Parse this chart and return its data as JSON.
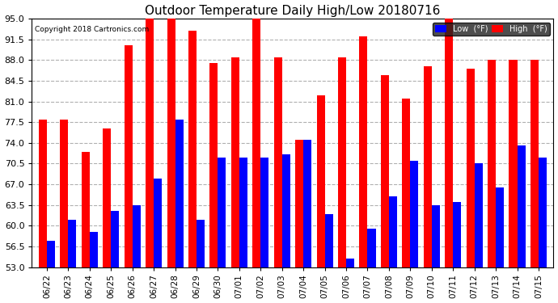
{
  "title": "Outdoor Temperature Daily High/Low 20180716",
  "copyright": "Copyright 2018 Cartronics.com",
  "dates": [
    "06/22",
    "06/23",
    "06/24",
    "06/25",
    "06/26",
    "06/27",
    "06/28",
    "06/29",
    "06/30",
    "07/01",
    "07/02",
    "07/03",
    "07/04",
    "07/05",
    "07/06",
    "07/07",
    "07/08",
    "07/09",
    "07/10",
    "07/11",
    "07/12",
    "07/13",
    "07/14",
    "07/15"
  ],
  "highs": [
    78.0,
    78.0,
    72.5,
    76.5,
    90.5,
    96.0,
    96.0,
    93.0,
    87.5,
    88.5,
    95.5,
    88.5,
    74.5,
    82.0,
    88.5,
    92.0,
    85.5,
    81.5,
    87.0,
    95.0,
    86.5,
    88.0,
    88.0,
    88.0
  ],
  "lows": [
    57.5,
    61.0,
    59.0,
    62.5,
    63.5,
    68.0,
    78.0,
    61.0,
    71.5,
    71.5,
    71.5,
    72.0,
    74.5,
    62.0,
    54.5,
    59.5,
    65.0,
    71.0,
    63.5,
    64.0,
    70.5,
    66.5,
    73.5,
    71.5
  ],
  "ylim": [
    53.0,
    95.0
  ],
  "yticks": [
    53.0,
    56.5,
    60.0,
    63.5,
    67.0,
    70.5,
    74.0,
    77.5,
    81.0,
    84.5,
    88.0,
    91.5,
    95.0
  ],
  "high_color": "#ff0000",
  "low_color": "#0000ff",
  "bg_color": "#ffffff",
  "grid_color": "#b0b0b0",
  "title_color": "#000000",
  "copyright_color": "#000000",
  "legend_low_bg": "#0000ff",
  "legend_high_bg": "#ff0000",
  "legend_text_color": "#ffffff",
  "bar_width": 0.38
}
